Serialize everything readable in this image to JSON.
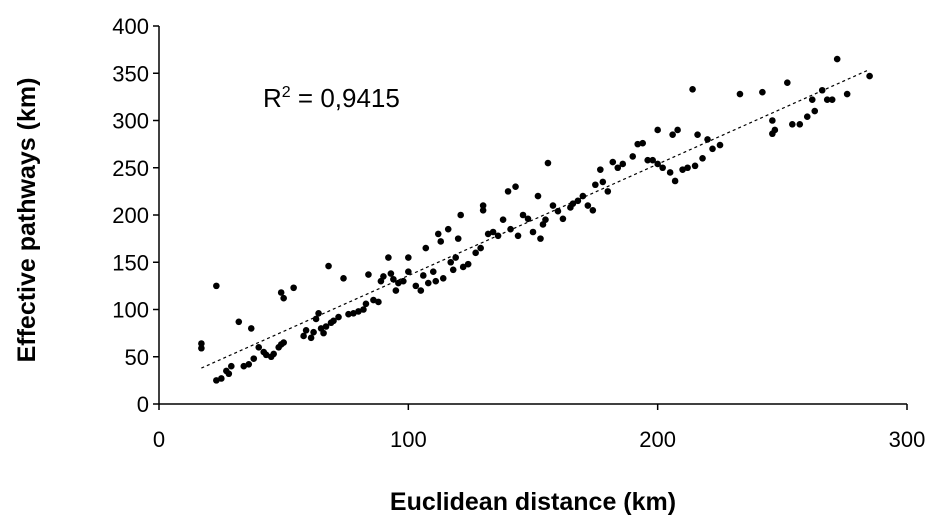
{
  "chart_data": {
    "type": "scatter",
    "xlabel": "Euclidean distance (km)",
    "ylabel": "Effective pathways (km)",
    "xlim": [
      0,
      300
    ],
    "ylim": [
      0,
      400
    ],
    "xticks": [
      "0",
      "100",
      "200",
      "300"
    ],
    "yticks": [
      "0",
      "50",
      "100",
      "150",
      "200",
      "250",
      "300",
      "350",
      "400"
    ],
    "grid": false,
    "legend": "none",
    "annotation": {
      "r_symbol": "R",
      "exponent": "2",
      "value": " = 0,9415"
    },
    "trendline": {
      "style": "dashed",
      "x": [
        17,
        285
      ],
      "y": [
        38,
        354
      ]
    },
    "colors": {
      "points": "#000000",
      "axes": "#000000",
      "trendline": "#000000"
    },
    "points": [
      [
        17,
        64
      ],
      [
        17,
        59
      ],
      [
        23,
        125
      ],
      [
        23,
        25
      ],
      [
        25,
        27
      ],
      [
        27,
        35
      ],
      [
        28,
        32
      ],
      [
        29,
        40
      ],
      [
        32,
        87
      ],
      [
        34,
        40
      ],
      [
        36,
        42
      ],
      [
        37,
        80
      ],
      [
        38,
        48
      ],
      [
        40,
        60
      ],
      [
        42,
        55
      ],
      [
        43,
        52
      ],
      [
        45,
        50
      ],
      [
        46,
        53
      ],
      [
        48,
        60
      ],
      [
        49,
        63
      ],
      [
        50,
        65
      ],
      [
        49,
        118
      ],
      [
        50,
        112
      ],
      [
        54,
        123
      ],
      [
        58,
        72
      ],
      [
        59,
        78
      ],
      [
        61,
        70
      ],
      [
        62,
        76
      ],
      [
        63,
        90
      ],
      [
        64,
        96
      ],
      [
        65,
        80
      ],
      [
        66,
        75
      ],
      [
        67,
        82
      ],
      [
        68,
        146
      ],
      [
        69,
        86
      ],
      [
        70,
        88
      ],
      [
        72,
        92
      ],
      [
        74,
        133
      ],
      [
        76,
        95
      ],
      [
        78,
        96
      ],
      [
        80,
        98
      ],
      [
        82,
        100
      ],
      [
        83,
        106
      ],
      [
        84,
        137
      ],
      [
        86,
        110
      ],
      [
        88,
        108
      ],
      [
        89,
        130
      ],
      [
        90,
        135
      ],
      [
        92,
        155
      ],
      [
        93,
        138
      ],
      [
        94,
        132
      ],
      [
        95,
        120
      ],
      [
        96,
        128
      ],
      [
        98,
        130
      ],
      [
        100,
        140
      ],
      [
        100,
        155
      ],
      [
        103,
        125
      ],
      [
        105,
        120
      ],
      [
        106,
        136
      ],
      [
        107,
        165
      ],
      [
        108,
        128
      ],
      [
        110,
        140
      ],
      [
        111,
        130
      ],
      [
        112,
        180
      ],
      [
        113,
        172
      ],
      [
        114,
        133
      ],
      [
        116,
        185
      ],
      [
        117,
        150
      ],
      [
        118,
        142
      ],
      [
        119,
        155
      ],
      [
        120,
        175
      ],
      [
        121,
        200
      ],
      [
        122,
        145
      ],
      [
        124,
        148
      ],
      [
        127,
        160
      ],
      [
        129,
        165
      ],
      [
        130,
        210
      ],
      [
        130,
        205
      ],
      [
        132,
        180
      ],
      [
        134,
        182
      ],
      [
        136,
        178
      ],
      [
        138,
        195
      ],
      [
        140,
        225
      ],
      [
        141,
        185
      ],
      [
        143,
        230
      ],
      [
        144,
        178
      ],
      [
        146,
        200
      ],
      [
        148,
        196
      ],
      [
        150,
        182
      ],
      [
        152,
        220
      ],
      [
        153,
        175
      ],
      [
        154,
        190
      ],
      [
        155,
        195
      ],
      [
        156,
        255
      ],
      [
        158,
        210
      ],
      [
        160,
        204
      ],
      [
        162,
        196
      ],
      [
        165,
        208
      ],
      [
        166,
        212
      ],
      [
        168,
        215
      ],
      [
        170,
        220
      ],
      [
        172,
        210
      ],
      [
        174,
        205
      ],
      [
        175,
        232
      ],
      [
        177,
        248
      ],
      [
        178,
        235
      ],
      [
        180,
        225
      ],
      [
        182,
        256
      ],
      [
        184,
        250
      ],
      [
        186,
        254
      ],
      [
        190,
        262
      ],
      [
        192,
        275
      ],
      [
        194,
        276
      ],
      [
        196,
        258
      ],
      [
        198,
        258
      ],
      [
        200,
        254
      ],
      [
        200,
        290
      ],
      [
        202,
        250
      ],
      [
        205,
        245
      ],
      [
        206,
        285
      ],
      [
        207,
        236
      ],
      [
        208,
        290
      ],
      [
        210,
        248
      ],
      [
        212,
        250
      ],
      [
        214,
        333
      ],
      [
        215,
        252
      ],
      [
        216,
        285
      ],
      [
        218,
        260
      ],
      [
        220,
        280
      ],
      [
        222,
        270
      ],
      [
        225,
        274
      ],
      [
        233,
        328
      ],
      [
        242,
        330
      ],
      [
        246,
        300
      ],
      [
        247,
        290
      ],
      [
        246,
        286
      ],
      [
        252,
        340
      ],
      [
        254,
        296
      ],
      [
        257,
        296
      ],
      [
        260,
        304
      ],
      [
        262,
        322
      ],
      [
        263,
        310
      ],
      [
        266,
        332
      ],
      [
        268,
        322
      ],
      [
        270,
        322
      ],
      [
        272,
        365
      ],
      [
        276,
        328
      ],
      [
        285,
        347
      ]
    ]
  }
}
